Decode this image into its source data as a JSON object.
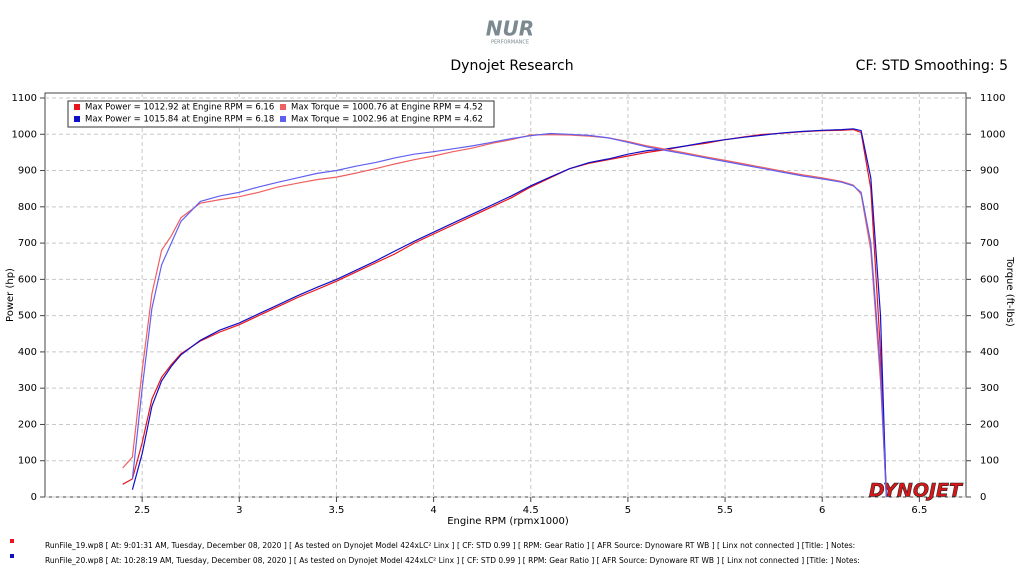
{
  "chart_data": {
    "type": "line",
    "logo": {
      "text": "NUR",
      "subtext": "PERFORMANCE"
    },
    "title": "Dynojet Research",
    "subtitle": "CF: STD Smoothing: 5",
    "xlabel": "Engine RPM (rpmx1000)",
    "ylabel": "Power (hp)",
    "y2label": "Torque (ft-lbs)",
    "watermark": "DYNOJET",
    "grid": true,
    "xlim": [
      2.0,
      6.74
    ],
    "xticks": [
      2.5,
      3.0,
      3.5,
      4.0,
      4.5,
      5.0,
      5.5,
      6.0,
      6.5
    ],
    "ylim": [
      0,
      1100
    ],
    "yticks": [
      0,
      100,
      200,
      300,
      400,
      500,
      600,
      700,
      800,
      900,
      1000,
      1100
    ],
    "y2lim": [
      0,
      1100
    ],
    "y2ticks": [
      0,
      100,
      200,
      300,
      400,
      500,
      600,
      700,
      800,
      900,
      1000,
      1100
    ],
    "x": [
      2.4,
      2.45,
      2.5,
      2.55,
      2.6,
      2.65,
      2.7,
      2.8,
      2.9,
      3.0,
      3.1,
      3.2,
      3.3,
      3.4,
      3.5,
      3.6,
      3.7,
      3.8,
      3.9,
      4.0,
      4.1,
      4.2,
      4.3,
      4.4,
      4.5,
      4.6,
      4.7,
      4.8,
      4.9,
      5.0,
      5.1,
      5.2,
      5.3,
      5.4,
      5.5,
      5.6,
      5.7,
      5.8,
      5.9,
      6.0,
      6.1,
      6.16,
      6.2,
      6.25,
      6.3,
      6.33
    ],
    "series": [
      {
        "name": "Max Power = 1012.92 at Engine RPM = 6.16",
        "color": "#e8141c",
        "values": [
          35,
          50,
          150,
          270,
          330,
          365,
          395,
          430,
          455,
          475,
          500,
          525,
          550,
          572,
          595,
          620,
          645,
          670,
          700,
          725,
          750,
          775,
          800,
          825,
          855,
          880,
          905,
          920,
          930,
          940,
          950,
          958,
          968,
          975,
          985,
          993,
          1000,
          1003,
          1007,
          1010,
          1011,
          1012.92,
          1005,
          850,
          400,
          5
        ]
      },
      {
        "name": "Max Power = 1015.84 at Engine RPM = 6.18",
        "color": "#1010c8",
        "values": [
          null,
          20,
          120,
          250,
          320,
          360,
          392,
          432,
          460,
          480,
          505,
          530,
          555,
          578,
          600,
          625,
          650,
          678,
          705,
          730,
          755,
          780,
          805,
          830,
          858,
          882,
          905,
          922,
          932,
          945,
          955,
          960,
          968,
          978,
          985,
          992,
          998,
          1004,
          1008,
          1011,
          1013,
          1015,
          1010,
          880,
          500,
          0
        ]
      },
      {
        "name": "Max Torque = 1000.76 at Engine RPM = 4.52",
        "color": "#f06060",
        "axis": "y2",
        "values": [
          80,
          110,
          350,
          560,
          680,
          720,
          770,
          810,
          820,
          828,
          840,
          855,
          865,
          875,
          882,
          893,
          905,
          918,
          930,
          940,
          952,
          962,
          975,
          985,
          998,
          999,
          998,
          995,
          990,
          980,
          968,
          958,
          948,
          938,
          928,
          918,
          908,
          898,
          888,
          880,
          870,
          860,
          835,
          680,
          320,
          5
        ]
      },
      {
        "name": "Max Torque = 1002.96 at Engine RPM = 4.62",
        "color": "#6060f0",
        "axis": "y2",
        "values": [
          null,
          50,
          300,
          520,
          640,
          700,
          760,
          815,
          830,
          840,
          855,
          868,
          880,
          892,
          900,
          912,
          922,
          935,
          945,
          952,
          960,
          968,
          978,
          988,
          996,
          1002,
          1000,
          997,
          990,
          978,
          965,
          955,
          945,
          935,
          925,
          915,
          905,
          895,
          885,
          877,
          868,
          858,
          840,
          700,
          350,
          0
        ]
      }
    ],
    "runs": [
      {
        "color": "#e8141c",
        "text": "RunFile_19.wp8 [ At: 9:01:31 AM, Tuesday, December 08, 2020 ] [ As tested on Dynojet Model 424xLC² Linx ] [ CF: STD 0.99 ] [ RPM: Gear Ratio ] [ AFR Source: Dynoware RT WB ] [ Linx not connected ] [Title: ]  Notes:"
      },
      {
        "color": "#1010c8",
        "text": "RunFile_20.wp8 [ At: 10:28:19 AM, Tuesday, December 08, 2020 ] [ As tested on Dynojet Model 424xLC² Linx ] [ CF: STD 0.99 ] [ RPM: Gear Ratio ] [ AFR Source: Dynoware RT WB ] [ Linx not connected ] [Title: ]  Notes:"
      }
    ]
  }
}
